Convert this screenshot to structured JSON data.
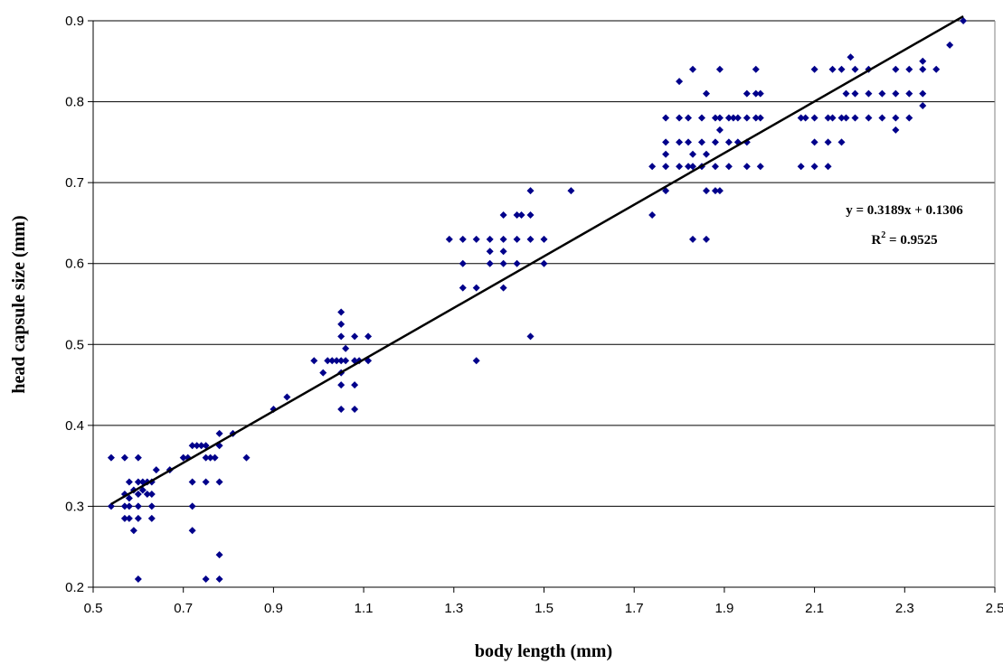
{
  "chart_data": {
    "type": "scatter",
    "title": "",
    "xlabel": "body length (mm)",
    "ylabel": "head capsule size (mm)",
    "xlim": [
      0.5,
      2.5
    ],
    "ylim": [
      0.2,
      0.9
    ],
    "xticks": [
      "0.5",
      "0.7",
      "0.9",
      "1.1",
      "1.3",
      "1.5",
      "1.7",
      "1.9",
      "2.1",
      "2.3",
      "2.5"
    ],
    "yticks": [
      "0.2",
      "0.3",
      "0.4",
      "0.5",
      "0.6",
      "0.7",
      "0.8",
      "0.9"
    ],
    "grid": "horizontal",
    "legend": "none",
    "marker_color": "#00008B",
    "trendline_color": "#000000",
    "trendline": {
      "slope": 0.3189,
      "intercept": 0.1306,
      "x_range": [
        0.54,
        2.43
      ],
      "equation_text": "y = 0.3189x + 0.1306",
      "r2_prefix": "R",
      "r2_sup": "2",
      "r2_suffix": " = 0.9525"
    },
    "points": [
      [
        0.54,
        0.36
      ],
      [
        0.54,
        0.3
      ],
      [
        0.57,
        0.36
      ],
      [
        0.57,
        0.315
      ],
      [
        0.57,
        0.3
      ],
      [
        0.57,
        0.285
      ],
      [
        0.58,
        0.33
      ],
      [
        0.58,
        0.31
      ],
      [
        0.58,
        0.3
      ],
      [
        0.58,
        0.285
      ],
      [
        0.59,
        0.32
      ],
      [
        0.59,
        0.27
      ],
      [
        0.6,
        0.36
      ],
      [
        0.6,
        0.33
      ],
      [
        0.6,
        0.315
      ],
      [
        0.6,
        0.3
      ],
      [
        0.6,
        0.285
      ],
      [
        0.6,
        0.21
      ],
      [
        0.61,
        0.33
      ],
      [
        0.61,
        0.32
      ],
      [
        0.62,
        0.33
      ],
      [
        0.62,
        0.315
      ],
      [
        0.63,
        0.33
      ],
      [
        0.63,
        0.315
      ],
      [
        0.63,
        0.3
      ],
      [
        0.63,
        0.285
      ],
      [
        0.64,
        0.345
      ],
      [
        0.67,
        0.345
      ],
      [
        0.7,
        0.36
      ],
      [
        0.71,
        0.36
      ],
      [
        0.72,
        0.375
      ],
      [
        0.72,
        0.33
      ],
      [
        0.72,
        0.3
      ],
      [
        0.72,
        0.27
      ],
      [
        0.73,
        0.375
      ],
      [
        0.74,
        0.375
      ],
      [
        0.75,
        0.375
      ],
      [
        0.75,
        0.36
      ],
      [
        0.75,
        0.33
      ],
      [
        0.75,
        0.21
      ],
      [
        0.76,
        0.36
      ],
      [
        0.77,
        0.36
      ],
      [
        0.78,
        0.39
      ],
      [
        0.78,
        0.375
      ],
      [
        0.78,
        0.33
      ],
      [
        0.78,
        0.24
      ],
      [
        0.78,
        0.21
      ],
      [
        0.81,
        0.39
      ],
      [
        0.84,
        0.36
      ],
      [
        0.9,
        0.42
      ],
      [
        0.93,
        0.435
      ],
      [
        0.99,
        0.48
      ],
      [
        1.01,
        0.465
      ],
      [
        1.02,
        0.48
      ],
      [
        1.03,
        0.48
      ],
      [
        1.04,
        0.48
      ],
      [
        1.05,
        0.54
      ],
      [
        1.05,
        0.525
      ],
      [
        1.05,
        0.51
      ],
      [
        1.05,
        0.48
      ],
      [
        1.05,
        0.465
      ],
      [
        1.05,
        0.45
      ],
      [
        1.05,
        0.42
      ],
      [
        1.06,
        0.495
      ],
      [
        1.06,
        0.48
      ],
      [
        1.08,
        0.51
      ],
      [
        1.08,
        0.48
      ],
      [
        1.08,
        0.45
      ],
      [
        1.08,
        0.42
      ],
      [
        1.09,
        0.48
      ],
      [
        1.11,
        0.51
      ],
      [
        1.11,
        0.48
      ],
      [
        1.29,
        0.63
      ],
      [
        1.32,
        0.63
      ],
      [
        1.32,
        0.6
      ],
      [
        1.32,
        0.57
      ],
      [
        1.35,
        0.63
      ],
      [
        1.35,
        0.57
      ],
      [
        1.35,
        0.48
      ],
      [
        1.38,
        0.63
      ],
      [
        1.38,
        0.6
      ],
      [
        1.38,
        0.615
      ],
      [
        1.41,
        0.66
      ],
      [
        1.41,
        0.63
      ],
      [
        1.41,
        0.615
      ],
      [
        1.41,
        0.6
      ],
      [
        1.41,
        0.57
      ],
      [
        1.44,
        0.66
      ],
      [
        1.44,
        0.63
      ],
      [
        1.44,
        0.6
      ],
      [
        1.45,
        0.66
      ],
      [
        1.47,
        0.69
      ],
      [
        1.47,
        0.66
      ],
      [
        1.47,
        0.63
      ],
      [
        1.47,
        0.51
      ],
      [
        1.5,
        0.63
      ],
      [
        1.5,
        0.6
      ],
      [
        1.56,
        0.69
      ],
      [
        1.74,
        0.72
      ],
      [
        1.74,
        0.66
      ],
      [
        1.77,
        0.78
      ],
      [
        1.77,
        0.75
      ],
      [
        1.77,
        0.735
      ],
      [
        1.77,
        0.72
      ],
      [
        1.77,
        0.69
      ],
      [
        1.8,
        0.825
      ],
      [
        1.8,
        0.78
      ],
      [
        1.8,
        0.75
      ],
      [
        1.8,
        0.72
      ],
      [
        1.82,
        0.78
      ],
      [
        1.82,
        0.75
      ],
      [
        1.82,
        0.72
      ],
      [
        1.83,
        0.84
      ],
      [
        1.83,
        0.735
      ],
      [
        1.83,
        0.72
      ],
      [
        1.83,
        0.63
      ],
      [
        1.85,
        0.78
      ],
      [
        1.85,
        0.75
      ],
      [
        1.85,
        0.72
      ],
      [
        1.86,
        0.81
      ],
      [
        1.86,
        0.735
      ],
      [
        1.86,
        0.69
      ],
      [
        1.86,
        0.63
      ],
      [
        1.88,
        0.78
      ],
      [
        1.88,
        0.75
      ],
      [
        1.88,
        0.72
      ],
      [
        1.88,
        0.69
      ],
      [
        1.89,
        0.84
      ],
      [
        1.89,
        0.78
      ],
      [
        1.89,
        0.765
      ],
      [
        1.89,
        0.69
      ],
      [
        1.91,
        0.78
      ],
      [
        1.91,
        0.75
      ],
      [
        1.91,
        0.72
      ],
      [
        1.92,
        0.78
      ],
      [
        1.93,
        0.78
      ],
      [
        1.93,
        0.75
      ],
      [
        1.95,
        0.81
      ],
      [
        1.95,
        0.78
      ],
      [
        1.95,
        0.75
      ],
      [
        1.95,
        0.72
      ],
      [
        1.97,
        0.84
      ],
      [
        1.97,
        0.81
      ],
      [
        1.97,
        0.78
      ],
      [
        1.98,
        0.81
      ],
      [
        1.98,
        0.78
      ],
      [
        1.98,
        0.72
      ],
      [
        2.07,
        0.78
      ],
      [
        2.07,
        0.72
      ],
      [
        2.08,
        0.78
      ],
      [
        2.1,
        0.84
      ],
      [
        2.1,
        0.78
      ],
      [
        2.1,
        0.75
      ],
      [
        2.1,
        0.72
      ],
      [
        2.13,
        0.78
      ],
      [
        2.13,
        0.75
      ],
      [
        2.13,
        0.72
      ],
      [
        2.14,
        0.84
      ],
      [
        2.14,
        0.78
      ],
      [
        2.16,
        0.84
      ],
      [
        2.16,
        0.78
      ],
      [
        2.16,
        0.75
      ],
      [
        2.17,
        0.81
      ],
      [
        2.17,
        0.78
      ],
      [
        2.18,
        0.855
      ],
      [
        2.19,
        0.84
      ],
      [
        2.19,
        0.81
      ],
      [
        2.19,
        0.78
      ],
      [
        2.22,
        0.84
      ],
      [
        2.22,
        0.81
      ],
      [
        2.22,
        0.78
      ],
      [
        2.25,
        0.81
      ],
      [
        2.25,
        0.78
      ],
      [
        2.28,
        0.84
      ],
      [
        2.28,
        0.81
      ],
      [
        2.28,
        0.78
      ],
      [
        2.28,
        0.765
      ],
      [
        2.31,
        0.84
      ],
      [
        2.31,
        0.81
      ],
      [
        2.31,
        0.78
      ],
      [
        2.34,
        0.85
      ],
      [
        2.34,
        0.84
      ],
      [
        2.34,
        0.81
      ],
      [
        2.34,
        0.795
      ],
      [
        2.37,
        0.84
      ],
      [
        2.4,
        0.87
      ],
      [
        2.43,
        0.9
      ]
    ]
  }
}
